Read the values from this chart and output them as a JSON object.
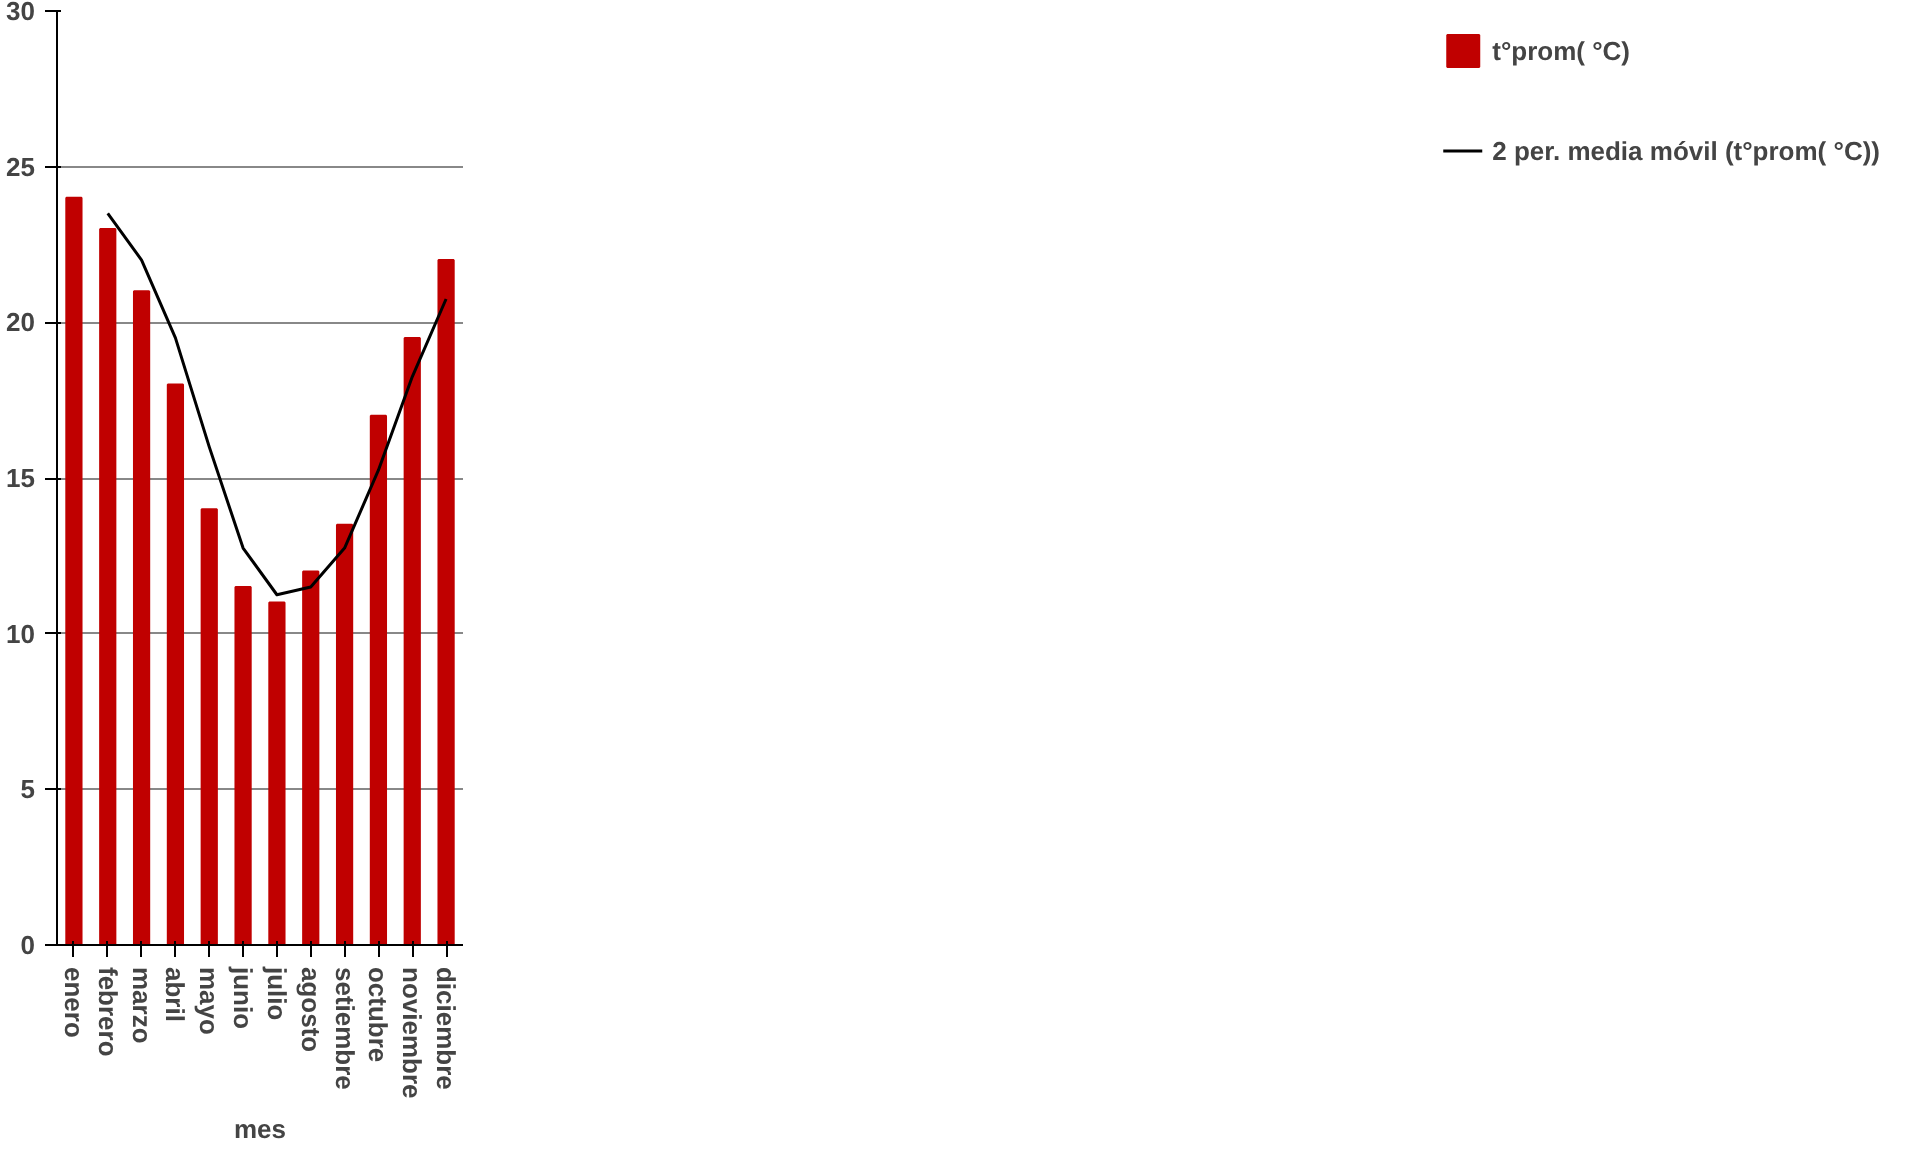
{
  "chart_data": {
    "type": "bar",
    "xlabel": "mes",
    "categories": [
      "enero",
      "febrero",
      "marzo",
      "abril",
      "mayo",
      "junio",
      "julio",
      "agosto",
      "setiembre",
      "octubre",
      "noviembre",
      "diciembre"
    ],
    "series": [
      {
        "name": "t°prom( °C)",
        "color": "#c00000",
        "values": [
          24,
          23,
          21,
          18,
          14,
          11.5,
          11,
          12,
          13.5,
          17,
          19.5,
          22
        ]
      },
      {
        "name": "2 per. media móvil (t°prom( °C))",
        "type": "line",
        "color": "#000000",
        "values": [
          null,
          23.5,
          22,
          19.5,
          16,
          12.75,
          11.25,
          11.5,
          12.75,
          15.25,
          18.25,
          20.75
        ]
      }
    ],
    "ylim": [
      0,
      30
    ],
    "yticks": [
      0,
      5,
      10,
      15,
      20,
      25,
      30
    ],
    "grid": "y",
    "legend": "right",
    "line_style": "solid"
  }
}
